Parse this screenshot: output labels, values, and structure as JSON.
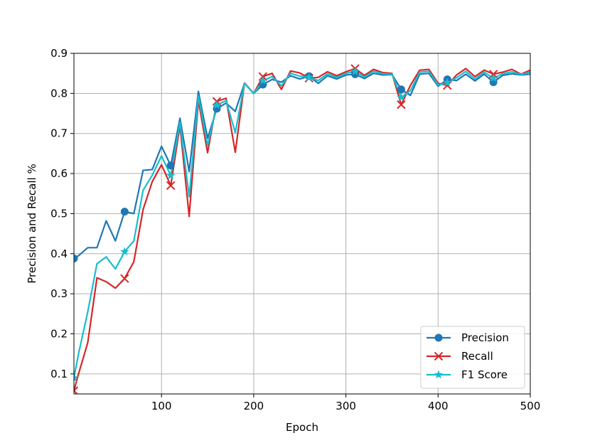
{
  "chart_data": {
    "type": "line",
    "xlabel": "Epoch",
    "ylabel": "Precision and Recall %",
    "xlim": [
      5,
      500
    ],
    "ylim": [
      0.05,
      0.9
    ],
    "xticks": [
      100,
      200,
      300,
      400,
      500
    ],
    "yticks": [
      0.1,
      0.2,
      0.3,
      0.4,
      0.5,
      0.6,
      0.7,
      0.8,
      0.9
    ],
    "grid": true,
    "legend_position": "lower-right",
    "marker_every": 50,
    "x": [
      5,
      10,
      20,
      30,
      40,
      50,
      60,
      70,
      80,
      90,
      100,
      110,
      120,
      130,
      140,
      150,
      160,
      170,
      180,
      190,
      200,
      210,
      220,
      230,
      240,
      250,
      260,
      270,
      280,
      290,
      300,
      310,
      320,
      330,
      340,
      350,
      360,
      370,
      380,
      390,
      400,
      410,
      420,
      430,
      440,
      450,
      460,
      470,
      480,
      490,
      500
    ],
    "series": [
      {
        "name": "Precision",
        "color": "#1f77b4",
        "marker": "circle",
        "values": [
          0.388,
          0.395,
          0.415,
          0.415,
          0.482,
          0.432,
          0.505,
          0.5,
          0.608,
          0.61,
          0.668,
          0.62,
          0.738,
          0.605,
          0.805,
          0.688,
          0.762,
          0.776,
          0.755,
          0.825,
          0.8,
          0.822,
          0.835,
          0.828,
          0.844,
          0.836,
          0.843,
          0.825,
          0.844,
          0.836,
          0.846,
          0.848,
          0.837,
          0.85,
          0.846,
          0.847,
          0.81,
          0.795,
          0.848,
          0.85,
          0.818,
          0.835,
          0.832,
          0.848,
          0.831,
          0.848,
          0.828,
          0.845,
          0.849,
          0.846,
          0.848
        ]
      },
      {
        "name": "Recall",
        "color": "#d62728",
        "marker": "x",
        "values": [
          0.058,
          0.1,
          0.178,
          0.34,
          0.33,
          0.314,
          0.338,
          0.38,
          0.51,
          0.58,
          0.622,
          0.57,
          0.72,
          0.493,
          0.782,
          0.652,
          0.78,
          0.788,
          0.653,
          0.826,
          0.8,
          0.842,
          0.85,
          0.81,
          0.856,
          0.851,
          0.838,
          0.84,
          0.854,
          0.844,
          0.854,
          0.862,
          0.845,
          0.86,
          0.852,
          0.85,
          0.772,
          0.82,
          0.858,
          0.86,
          0.825,
          0.82,
          0.846,
          0.862,
          0.842,
          0.858,
          0.848,
          0.853,
          0.86,
          0.848,
          0.858
        ]
      },
      {
        "name": "F1 Score",
        "color": "#17becf",
        "marker": "star",
        "values": [
          0.09,
          0.15,
          0.255,
          0.375,
          0.392,
          0.362,
          0.405,
          0.432,
          0.558,
          0.596,
          0.644,
          0.595,
          0.728,
          0.542,
          0.793,
          0.67,
          0.771,
          0.782,
          0.702,
          0.825,
          0.8,
          0.832,
          0.842,
          0.819,
          0.85,
          0.843,
          0.84,
          0.832,
          0.849,
          0.84,
          0.85,
          0.855,
          0.841,
          0.855,
          0.849,
          0.848,
          0.79,
          0.807,
          0.853,
          0.855,
          0.821,
          0.827,
          0.839,
          0.855,
          0.836,
          0.853,
          0.838,
          0.849,
          0.854,
          0.847,
          0.853
        ]
      }
    ]
  }
}
